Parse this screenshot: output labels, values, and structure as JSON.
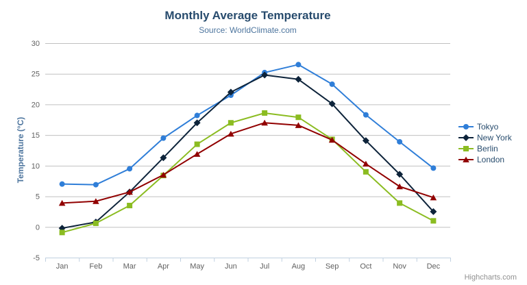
{
  "header": {
    "title": "Monthly Average Temperature",
    "subtitle": "Source: WorldClimate.com"
  },
  "credits_label": "Highcharts.com",
  "icons": {
    "export_menu": "hamburger-icon"
  },
  "colors": {
    "title_text": "#274b6d",
    "subtitle_text": "#4d759e",
    "axis_label_text": "#606060",
    "gridline": "#C0C0C0",
    "axis_line": "#C0D0E0",
    "legend_text": "#274b6d",
    "credits_text": "#909090"
  },
  "chart_data": {
    "type": "line",
    "title": "Monthly Average Temperature",
    "subtitle": "Source: WorldClimate.com",
    "categories": [
      "Jan",
      "Feb",
      "Mar",
      "Apr",
      "May",
      "Jun",
      "Jul",
      "Aug",
      "Sep",
      "Oct",
      "Nov",
      "Dec"
    ],
    "series": [
      {
        "name": "Tokyo",
        "color": "#2f7ed8",
        "marker": "circle",
        "values": [
          7.0,
          6.9,
          9.5,
          14.5,
          18.2,
          21.5,
          25.2,
          26.5,
          23.3,
          18.3,
          13.9,
          9.6
        ]
      },
      {
        "name": "New York",
        "color": "#0d233a",
        "marker": "diamond",
        "values": [
          -0.2,
          0.8,
          5.7,
          11.3,
          17.0,
          22.0,
          24.8,
          24.1,
          20.1,
          14.1,
          8.6,
          2.5
        ]
      },
      {
        "name": "Berlin",
        "color": "#8bbc21",
        "marker": "square",
        "values": [
          -0.9,
          0.6,
          3.5,
          8.4,
          13.5,
          17.0,
          18.6,
          17.9,
          14.3,
          9.0,
          3.9,
          1.0
        ]
      },
      {
        "name": "London",
        "color": "#910000",
        "marker": "triangle",
        "values": [
          3.9,
          4.2,
          5.7,
          8.5,
          11.9,
          15.2,
          17.0,
          16.6,
          14.2,
          10.3,
          6.6,
          4.8
        ]
      }
    ],
    "xlabel": "",
    "ylabel": "Temperature (°C)",
    "ylim": [
      -5,
      30
    ],
    "yticks": [
      30,
      25,
      20,
      15,
      10,
      5,
      0,
      -5
    ],
    "grid": "horizontal",
    "legend_position": "right"
  }
}
